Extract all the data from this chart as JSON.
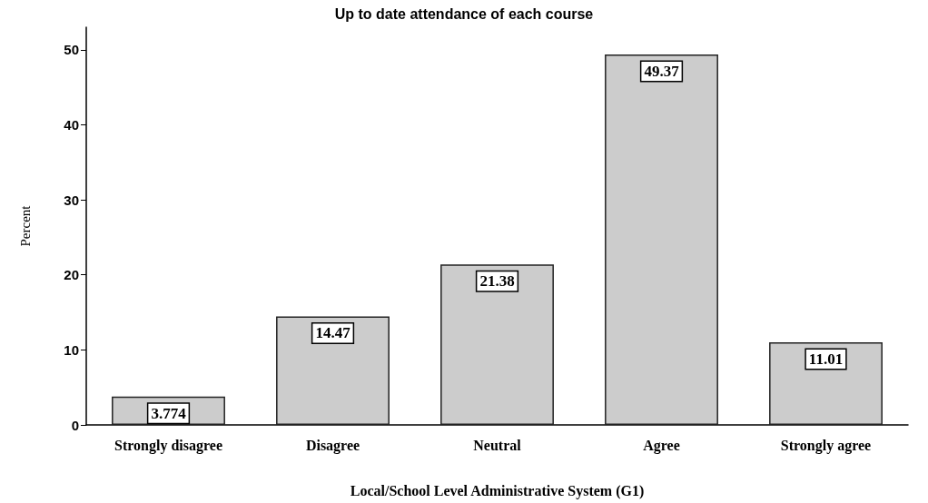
{
  "chart_data": {
    "type": "bar",
    "title": "Up to date attendance of each course",
    "xlabel": "Local/School Level Administrative System (G1)",
    "ylabel": "Percent",
    "categories": [
      "Strongly disagree",
      "Disagree",
      "Neutral",
      "Agree",
      "Strongly agree"
    ],
    "values": [
      3.774,
      14.47,
      21.38,
      49.37,
      11.01
    ],
    "color": "#cccccc",
    "ylim": [
      0,
      53
    ],
    "yticks": [
      0,
      10,
      20,
      30,
      40,
      50
    ],
    "data_labels": true
  }
}
